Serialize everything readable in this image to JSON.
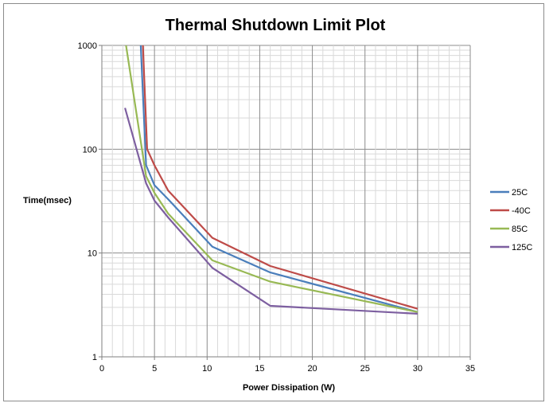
{
  "chart_data": {
    "type": "line",
    "title": "Thermal Shutdown Limit Plot",
    "xlabel": "Power Dissipation  (W)",
    "ylabel": "Time(msec)",
    "xlim": [
      0,
      35
    ],
    "ylim": [
      1,
      1000
    ],
    "y_scale": "log",
    "x_ticks": [
      0,
      5,
      10,
      15,
      20,
      25,
      30,
      35
    ],
    "y_ticks": [
      1,
      10,
      100,
      1000
    ],
    "grid": true,
    "legend_position": "right",
    "series": [
      {
        "name": "25C",
        "color": "#4a7ebb",
        "x": [
          3.7,
          4.2,
          5,
          6.3,
          10.5,
          16,
          30
        ],
        "y": [
          1000,
          70,
          45,
          33,
          11.5,
          6.5,
          2.7
        ]
      },
      {
        "name": "-40C",
        "color": "#be4b48",
        "x": [
          3.9,
          4.3,
          5,
          6.3,
          10.5,
          16,
          30
        ],
        "y": [
          1000,
          100,
          70,
          40,
          14,
          7.5,
          2.9
        ]
      },
      {
        "name": "85C",
        "color": "#98b954",
        "x": [
          2.3,
          4.2,
          5,
          6.3,
          10.5,
          16,
          30
        ],
        "y": [
          1000,
          55,
          38,
          24,
          8.5,
          5.3,
          2.7
        ]
      },
      {
        "name": "125C",
        "color": "#7d5fa0",
        "x": [
          2.2,
          4.2,
          5,
          6.3,
          10.5,
          16,
          30
        ],
        "y": [
          250,
          47,
          32,
          22,
          7.2,
          3.1,
          2.6
        ]
      }
    ]
  }
}
